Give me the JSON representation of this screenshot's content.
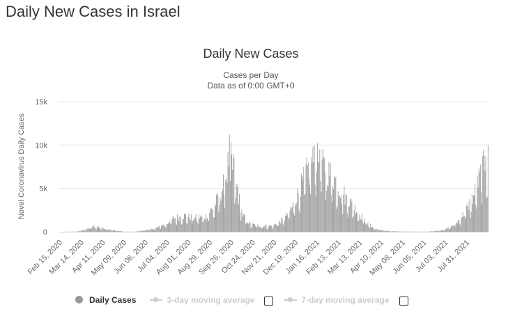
{
  "page": {
    "heading": "Daily New Cases in Israel"
  },
  "chart_data": {
    "type": "bar",
    "title": "Daily New Cases",
    "subtitle_line1": "Cases per Day",
    "subtitle_line2": "Data as of 0:00 GMT+0",
    "ylabel": "Novel Coronavirus Daily Cases",
    "xlabel": "",
    "ylim": [
      0,
      15000
    ],
    "y_ticks": [
      {
        "value": 0,
        "label": "0"
      },
      {
        "value": 5000,
        "label": "5k"
      },
      {
        "value": 10000,
        "label": "10k"
      },
      {
        "value": 15000,
        "label": "15k"
      }
    ],
    "x_start": "2020-02-15",
    "x_end": "2021-08-29",
    "x_ticks": [
      "Feb 15, 2020",
      "Mar 14, 2020",
      "Apr 11, 2020",
      "May 09, 2020",
      "Jun 06, 2020",
      "Jul 04, 2020",
      "Aug 01, 2020",
      "Aug 29, 2020",
      "Sep 26, 2020",
      "Oct 24, 2020",
      "Nov 21, 2020",
      "Dec 19, 2020",
      "Jan 16, 2021",
      "Feb 13, 2021",
      "Mar 13, 2021",
      "Apr 10, 2021",
      "May 08, 2021",
      "Jun 05, 2021",
      "Jul 03, 2021",
      "Jul 31, 2021"
    ],
    "grid": true,
    "color": "#999999",
    "key_points": [
      [
        "2020-02-15",
        0
      ],
      [
        "2020-03-10",
        30
      ],
      [
        "2020-03-22",
        300
      ],
      [
        "2020-04-01",
        650
      ],
      [
        "2020-04-10",
        500
      ],
      [
        "2020-04-25",
        200
      ],
      [
        "2020-05-10",
        20
      ],
      [
        "2020-05-25",
        15
      ],
      [
        "2020-06-05",
        150
      ],
      [
        "2020-06-20",
        400
      ],
      [
        "2020-07-05",
        1000
      ],
      [
        "2020-07-15",
        1650
      ],
      [
        "2020-07-28",
        1900
      ],
      [
        "2020-08-10",
        1650
      ],
      [
        "2020-08-25",
        1850
      ],
      [
        "2020-09-05",
        3000
      ],
      [
        "2020-09-15",
        5000
      ],
      [
        "2020-09-22",
        7000
      ],
      [
        "2020-09-25",
        9500
      ],
      [
        "2020-09-30",
        7000
      ],
      [
        "2020-10-05",
        5000
      ],
      [
        "2020-10-12",
        2000
      ],
      [
        "2020-10-22",
        900
      ],
      [
        "2020-11-05",
        700
      ],
      [
        "2020-11-20",
        700
      ],
      [
        "2020-12-05",
        1500
      ],
      [
        "2020-12-15",
        2800
      ],
      [
        "2020-12-25",
        4800
      ],
      [
        "2021-01-08",
        8000
      ],
      [
        "2021-01-18",
        8800
      ],
      [
        "2021-01-28",
        7500
      ],
      [
        "2021-02-08",
        6500
      ],
      [
        "2021-02-20",
        4500
      ],
      [
        "2021-03-05",
        3200
      ],
      [
        "2021-03-15",
        2000
      ],
      [
        "2021-03-25",
        900
      ],
      [
        "2021-04-05",
        300
      ],
      [
        "2021-04-15",
        150
      ],
      [
        "2021-04-25",
        60
      ],
      [
        "2021-05-15",
        25
      ],
      [
        "2021-06-10",
        15
      ],
      [
        "2021-06-20",
        90
      ],
      [
        "2021-06-30",
        200
      ],
      [
        "2021-07-10",
        500
      ],
      [
        "2021-07-20",
        1200
      ],
      [
        "2021-07-31",
        2500
      ],
      [
        "2021-08-10",
        4200
      ],
      [
        "2021-08-18",
        6500
      ],
      [
        "2021-08-24",
        8000
      ],
      [
        "2021-08-29",
        8300
      ]
    ],
    "spikes": [
      [
        "2020-09-25",
        11200
      ],
      [
        "2020-09-30",
        9000
      ],
      [
        "2020-10-01",
        8500
      ],
      [
        "2020-10-06",
        5500
      ],
      [
        "2021-01-14",
        10000
      ],
      [
        "2021-01-18",
        10200
      ],
      [
        "2021-01-21",
        9500
      ],
      [
        "2021-02-22",
        5300
      ],
      [
        "2021-08-26",
        8700
      ],
      [
        "2021-08-29",
        10000
      ]
    ]
  },
  "legend": [
    {
      "name": "Daily Cases",
      "state": "visible",
      "color": "#999999"
    },
    {
      "name": "3-day moving average",
      "state": "hidden",
      "color": "#cccccc"
    },
    {
      "name": "7-day moving average",
      "state": "hidden",
      "color": "#cccccc"
    }
  ]
}
